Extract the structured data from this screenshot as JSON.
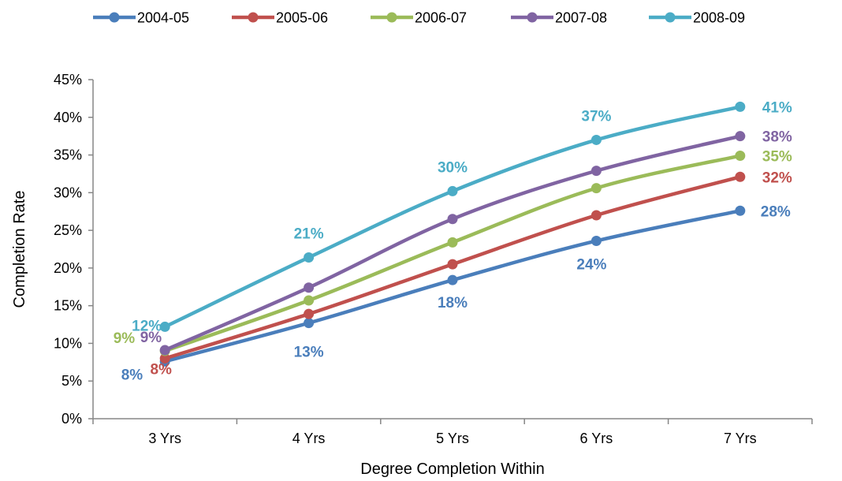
{
  "chart_data": {
    "type": "line",
    "title": "",
    "xlabel": "Degree Completion Within",
    "ylabel": "Completion Rate",
    "categories": [
      "3 Yrs",
      "4 Yrs",
      "5 Yrs",
      "6 Yrs",
      "7 Yrs"
    ],
    "ylim": [
      0,
      45
    ],
    "y_ticks": [
      "0%",
      "5%",
      "10%",
      "15%",
      "20%",
      "25%",
      "30%",
      "35%",
      "40%",
      "45%"
    ],
    "grid": false,
    "legend_position": "top",
    "series": [
      {
        "name": "2004-05",
        "color": "#4a7ebb",
        "values": [
          7.6,
          12.7,
          18.4,
          23.6,
          27.6
        ],
        "labels": [
          "8%",
          "13%",
          "18%",
          "24%",
          "28%"
        ]
      },
      {
        "name": "2005-06",
        "color": "#c0504d",
        "values": [
          8.0,
          13.9,
          20.5,
          27.0,
          32.1
        ],
        "labels": [
          "8%",
          "",
          "",
          "",
          "32%"
        ]
      },
      {
        "name": "2006-07",
        "color": "#9bbb59",
        "values": [
          9.0,
          15.7,
          23.4,
          30.6,
          34.9
        ],
        "labels": [
          "9%",
          "",
          "",
          "",
          "35%"
        ]
      },
      {
        "name": "2007-08",
        "color": "#8064a2",
        "values": [
          9.1,
          17.4,
          26.5,
          32.9,
          37.5
        ],
        "labels": [
          "9%",
          "",
          "",
          "",
          "38%"
        ]
      },
      {
        "name": "2008-09",
        "color": "#4bacc6",
        "values": [
          12.2,
          21.4,
          30.2,
          37.0,
          41.4
        ],
        "labels": [
          "12%",
          "21%",
          "30%",
          "37%",
          "41%"
        ]
      }
    ]
  }
}
